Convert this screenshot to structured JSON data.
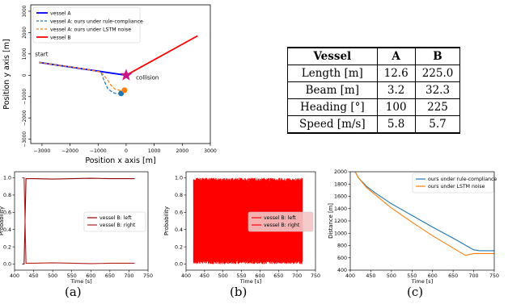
{
  "chart_data": [
    {
      "type": "line",
      "subtype": "trajectory",
      "xlabel": "Position x axis [m]",
      "ylabel": "Position y axis [m]",
      "xlim": [
        -3400,
        3000
      ],
      "ylim": [
        -3200,
        3300
      ],
      "xticks": [
        -3000,
        -2000,
        -1000,
        0,
        1000,
        2000,
        3000
      ],
      "xtick_labels": [
        "−3000",
        "−2000",
        "−1000",
        "0",
        "1000",
        "2000",
        "3000"
      ],
      "yticks": [
        -3000,
        -2000,
        -1000,
        0,
        1000,
        2000,
        3000
      ],
      "ytick_labels": [
        "−3000",
        "−2000",
        "−1000",
        "0",
        "1000",
        "2000",
        "3000"
      ],
      "legend_position": "top-left",
      "series": [
        {
          "name": "vessel A",
          "color": "#0000ff",
          "style": "solid",
          "x": [
            -3100,
            0
          ],
          "y": [
            600,
            0
          ]
        },
        {
          "name": "vessel A: ours under rule-compliance",
          "color": "#1f77b4",
          "style": "dashed",
          "x": [
            -3100,
            -1500,
            -900,
            -800,
            -650,
            -450,
            -300,
            -180
          ],
          "y": [
            600,
            300,
            150,
            -200,
            -650,
            -820,
            -880,
            -850
          ]
        },
        {
          "name": "vessel A: ours under LSTM noise",
          "color": "#ff7f0e",
          "style": "dashed",
          "x": [
            -3100,
            -1500,
            -900,
            -700,
            -550,
            -400,
            -200,
            -60
          ],
          "y": [
            600,
            300,
            150,
            -150,
            -450,
            -650,
            -720,
            -700
          ]
        },
        {
          "name": "vessel B",
          "color": "#ff0000",
          "style": "solid",
          "x": [
            0,
            2550
          ],
          "y": [
            0,
            1850
          ]
        }
      ],
      "markers": [
        {
          "label": "collision",
          "shape": "star",
          "color": "#c71585",
          "x": 0,
          "y": 0
        },
        {
          "shape": "dot",
          "color": "#1f77b4",
          "x": -180,
          "y": -850
        },
        {
          "shape": "dot",
          "color": "#ff7f0e",
          "x": -60,
          "y": -700
        }
      ],
      "annotations": [
        {
          "text": "start",
          "x": -3250,
          "y": 900
        },
        {
          "text": "collision",
          "x": 350,
          "y": -200
        }
      ]
    },
    {
      "type": "line",
      "xlabel": "Time [s]",
      "ylabel": "Probability",
      "xlim": [
        400,
        750
      ],
      "ylim": [
        -0.07,
        1.07
      ],
      "xticks": [
        400,
        450,
        500,
        550,
        600,
        650,
        700,
        750
      ],
      "yticks": [
        0.0,
        0.2,
        0.4,
        0.6,
        0.8,
        1.0
      ],
      "ytick_labels": [
        "0.0",
        "0.2",
        "0.4",
        "0.6",
        "0.8",
        "1.0"
      ],
      "legend_position": "center-right",
      "series": [
        {
          "name": "vessel B: left",
          "color": "#8b0000",
          "x": [
            420,
            425,
            430,
            450,
            500,
            550,
            600,
            650,
            700,
            715
          ],
          "y": [
            0.0,
            0.0,
            0.99,
            0.99,
            0.985,
            0.99,
            0.995,
            0.99,
            0.99,
            0.99
          ]
        },
        {
          "name": "vessel B: right",
          "color": "#b22222",
          "x": [
            420,
            425,
            430,
            450,
            500,
            550,
            600,
            650,
            700,
            715
          ],
          "y": [
            1.0,
            1.0,
            0.01,
            0.01,
            0.015,
            0.01,
            0.005,
            0.01,
            0.01,
            0.01
          ]
        }
      ],
      "caption": "(a)"
    },
    {
      "type": "line",
      "xlabel": "Time [s]",
      "ylabel": "Probability",
      "xlim": [
        400,
        750
      ],
      "ylim": [
        -0.07,
        1.07
      ],
      "xticks": [
        400,
        450,
        500,
        550,
        600,
        650,
        700,
        750
      ],
      "yticks": [
        0.0,
        0.2,
        0.4,
        0.6,
        0.8,
        1.0
      ],
      "ytick_labels": [
        "0.0",
        "0.2",
        "0.4",
        "0.6",
        "0.8",
        "1.0"
      ],
      "legend_position": "center-right",
      "series": [
        {
          "name": "vessel B: left",
          "color": "#ff0000",
          "pattern": "rapid oscillation",
          "x_range": [
            420,
            715
          ],
          "y_range": [
            0.0,
            1.0
          ]
        },
        {
          "name": "vessel B: right",
          "color": "#ff0000",
          "pattern": "rapid oscillation",
          "x_range": [
            420,
            715
          ],
          "y_range": [
            0.0,
            1.0
          ]
        }
      ],
      "caption": "(b)"
    },
    {
      "type": "line",
      "xlabel": "Time [s]",
      "ylabel": "Distance [m]",
      "xlim": [
        400,
        750
      ],
      "ylim": [
        400,
        2000
      ],
      "xticks": [
        400,
        450,
        500,
        550,
        600,
        650,
        700,
        750
      ],
      "yticks": [
        400,
        600,
        800,
        1000,
        1200,
        1400,
        1600,
        1800,
        2000
      ],
      "legend_position": "top-right",
      "series": [
        {
          "name": "ours under rule-compliance",
          "color": "#1f77b4",
          "x": [
            400,
            420,
            440,
            460,
            500,
            550,
            600,
            650,
            700,
            715,
            750
          ],
          "y": [
            2150,
            1900,
            1760,
            1660,
            1480,
            1290,
            1100,
            920,
            730,
            715,
            715
          ]
        },
        {
          "name": "ours under LSTM noise",
          "color": "#ff7f0e",
          "x": [
            400,
            420,
            440,
            460,
            500,
            550,
            600,
            650,
            680,
            700,
            750
          ],
          "y": [
            2150,
            1900,
            1740,
            1630,
            1410,
            1180,
            960,
            760,
            640,
            670,
            670
          ]
        }
      ],
      "caption": "(c)"
    }
  ],
  "table": {
    "headers": [
      "Vessel",
      "A",
      "B"
    ],
    "rows": [
      [
        "Length [m]",
        "12.6",
        "225.0"
      ],
      [
        "Beam [m]",
        "3.2",
        "32.3"
      ],
      [
        "Heading [°]",
        "100",
        "225"
      ],
      [
        "Speed [m/s]",
        "5.8",
        "5.7"
      ]
    ]
  }
}
